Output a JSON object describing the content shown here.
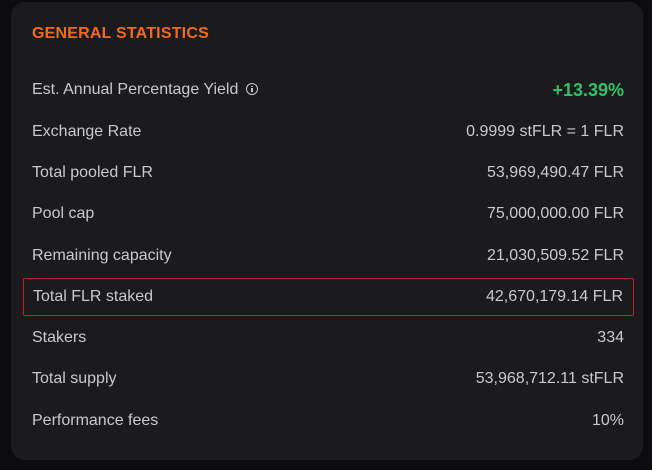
{
  "card": {
    "title": "GENERAL STATISTICS"
  },
  "stats": [
    {
      "label": "Est. Annual Percentage Yield",
      "value": "+13.39%",
      "info_icon": "info-icon"
    },
    {
      "label": "Exchange Rate",
      "value": "0.9999 stFLR = 1 FLR"
    },
    {
      "label": "Total pooled FLR",
      "value": "53,969,490.47 FLR"
    },
    {
      "label": "Pool cap",
      "value": "75,000,000.00 FLR"
    },
    {
      "label": "Remaining capacity",
      "value": "21,030,509.52 FLR"
    },
    {
      "label": "Total FLR staked",
      "value": "42,670,179.14 FLR",
      "highlighted": true
    },
    {
      "label": "Stakers",
      "value": "334"
    },
    {
      "label": "Total supply",
      "value": "53,968,712.11 stFLR"
    },
    {
      "label": "Performance fees",
      "value": "10%"
    }
  ],
  "colors": {
    "title": "#f06a1d",
    "positive": "#33c06b",
    "highlight_border": "#b3262b",
    "card_bg": "#1b1b1e",
    "text": "#c9c9cc"
  }
}
